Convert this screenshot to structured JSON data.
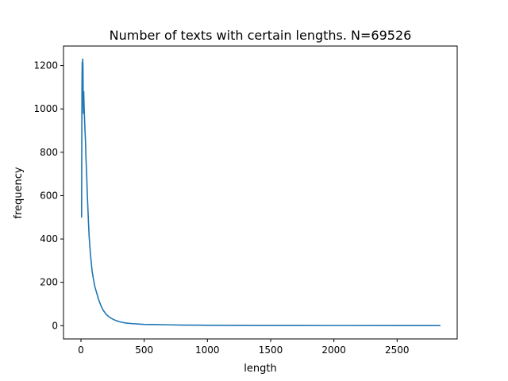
{
  "chart_data": {
    "type": "line",
    "title": "Number of texts with certain lengths. N=69526",
    "xlabel": "length",
    "ylabel": "frequency",
    "xlim": [
      -138,
      2975
    ],
    "ylim": [
      -61,
      1290
    ],
    "xticks": [
      0,
      500,
      1000,
      1500,
      2000,
      2500
    ],
    "yticks": [
      0,
      200,
      400,
      600,
      800,
      1000,
      1200
    ],
    "grid": false,
    "legend": "none",
    "color": "#1f77b4",
    "series": [
      {
        "points": [
          [
            5,
            500
          ],
          [
            8,
            1100
          ],
          [
            10,
            1215
          ],
          [
            12,
            1180
          ],
          [
            14,
            1230
          ],
          [
            16,
            1190
          ],
          [
            18,
            1020
          ],
          [
            20,
            980
          ],
          [
            22,
            1080
          ],
          [
            25,
            1010
          ],
          [
            28,
            960
          ],
          [
            32,
            900
          ],
          [
            36,
            850
          ],
          [
            40,
            770
          ],
          [
            45,
            700
          ],
          [
            50,
            610
          ],
          [
            55,
            540
          ],
          [
            60,
            470
          ],
          [
            65,
            410
          ],
          [
            70,
            370
          ],
          [
            75,
            330
          ],
          [
            80,
            300
          ],
          [
            85,
            270
          ],
          [
            90,
            245
          ],
          [
            100,
            210
          ],
          [
            110,
            180
          ],
          [
            120,
            160
          ],
          [
            130,
            140
          ],
          [
            140,
            120
          ],
          [
            150,
            105
          ],
          [
            160,
            90
          ],
          [
            170,
            78
          ],
          [
            180,
            68
          ],
          [
            190,
            60
          ],
          [
            200,
            52
          ],
          [
            220,
            42
          ],
          [
            240,
            34
          ],
          [
            260,
            28
          ],
          [
            280,
            23
          ],
          [
            300,
            19
          ],
          [
            330,
            15
          ],
          [
            360,
            12
          ],
          [
            400,
            10
          ],
          [
            450,
            8
          ],
          [
            500,
            6
          ],
          [
            600,
            5
          ],
          [
            700,
            4
          ],
          [
            800,
            3
          ],
          [
            1000,
            2
          ],
          [
            1200,
            1.5
          ],
          [
            1500,
            1
          ],
          [
            2000,
            0.8
          ],
          [
            2500,
            0.6
          ],
          [
            2840,
            0.5
          ]
        ]
      }
    ]
  }
}
